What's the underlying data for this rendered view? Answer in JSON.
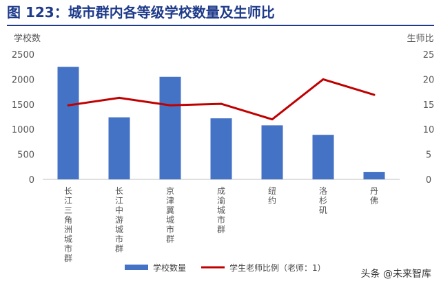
{
  "header": {
    "title": "图 123：城市群内各等级学校数量及生师比"
  },
  "chart_data": {
    "type": "bar",
    "categories": [
      "长江三角洲城市群",
      "长江中游城市群",
      "京津冀城市群",
      "成渝城市群",
      "纽约",
      "洛杉矶",
      "丹佛"
    ],
    "series": [
      {
        "name": "学校数量",
        "type": "bar",
        "axis": "left",
        "values": [
          2250,
          1240,
          2050,
          1220,
          1080,
          890,
          150
        ]
      },
      {
        "name": "学生老师比例（老师：1）",
        "type": "line",
        "axis": "right",
        "values": [
          14.8,
          16.3,
          14.8,
          15.1,
          12.0,
          20.0,
          16.9
        ]
      }
    ],
    "ylabel": "学校数",
    "ylabel_right": "生师比",
    "ylim": [
      0,
      2500
    ],
    "ylim_right": [
      0,
      25
    ],
    "yticks": [
      0,
      500,
      1000,
      1500,
      2000,
      2500
    ],
    "yticks_right": [
      0,
      5,
      10,
      15,
      20,
      25
    ],
    "grid": false,
    "legend": "bottom",
    "colors": {
      "bar": "#4472c4",
      "line": "#c00000"
    }
  },
  "watermark": "头条 @未来智库"
}
